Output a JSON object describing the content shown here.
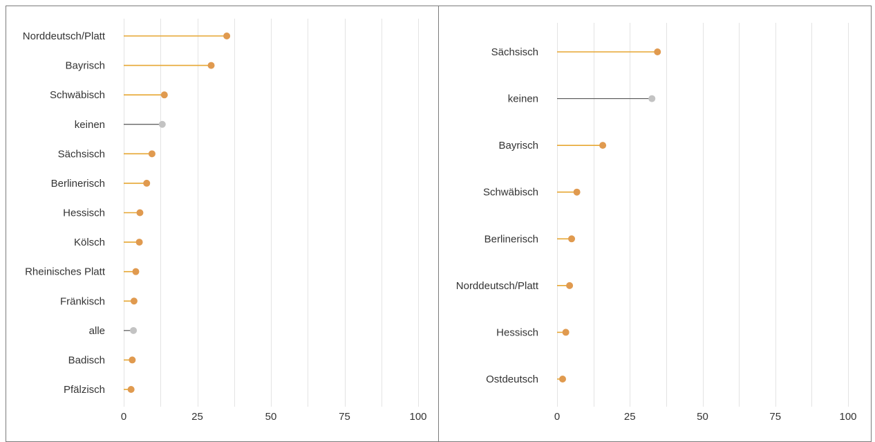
{
  "colors": {
    "dialect": "#e09a4f",
    "dialect_stem": "#e6a631",
    "neutral": "#c3c3c3",
    "neutral_stem": "#555555"
  },
  "chart_data": [
    {
      "type": "lollipop",
      "title": "",
      "xlabel": "",
      "ylabel": "",
      "xlim": [
        0,
        100
      ],
      "x_ticks": [
        0,
        25,
        50,
        75,
        100
      ],
      "minor_grid": [
        12.5,
        37.5,
        62.5,
        87.5
      ],
      "grid": true,
      "categories": [
        "Norddeutsch/Platt",
        "Bayrisch",
        "Schwäbisch",
        "keinen",
        "Sächsisch",
        "Berlinerisch",
        "Hessisch",
        "Kölsch",
        "Rheinisches Platt",
        "Fränkisch",
        "alle",
        "Badisch",
        "Pfälzisch"
      ],
      "values": [
        35,
        29.7,
        13.8,
        13.1,
        9.6,
        7.8,
        5.5,
        5.3,
        4.1,
        3.5,
        3.3,
        2.9,
        2.5
      ],
      "neutral_categories": [
        "keinen",
        "alle"
      ]
    },
    {
      "type": "lollipop",
      "title": "",
      "xlabel": "",
      "ylabel": "",
      "xlim": [
        0,
        100
      ],
      "x_ticks": [
        0,
        25,
        50,
        75,
        100
      ],
      "minor_grid": [
        12.5,
        37.5,
        62.5,
        87.5
      ],
      "grid": true,
      "categories": [
        "Sächsisch",
        "keinen",
        "Bayrisch",
        "Schwäbisch",
        "Berlinerisch",
        "Norddeutsch/Platt",
        "Hessisch",
        "Ostdeutsch"
      ],
      "values": [
        34.5,
        32.6,
        15.7,
        6.8,
        5.0,
        4.3,
        3.0,
        1.9
      ],
      "neutral_categories": [
        "keinen"
      ]
    }
  ]
}
